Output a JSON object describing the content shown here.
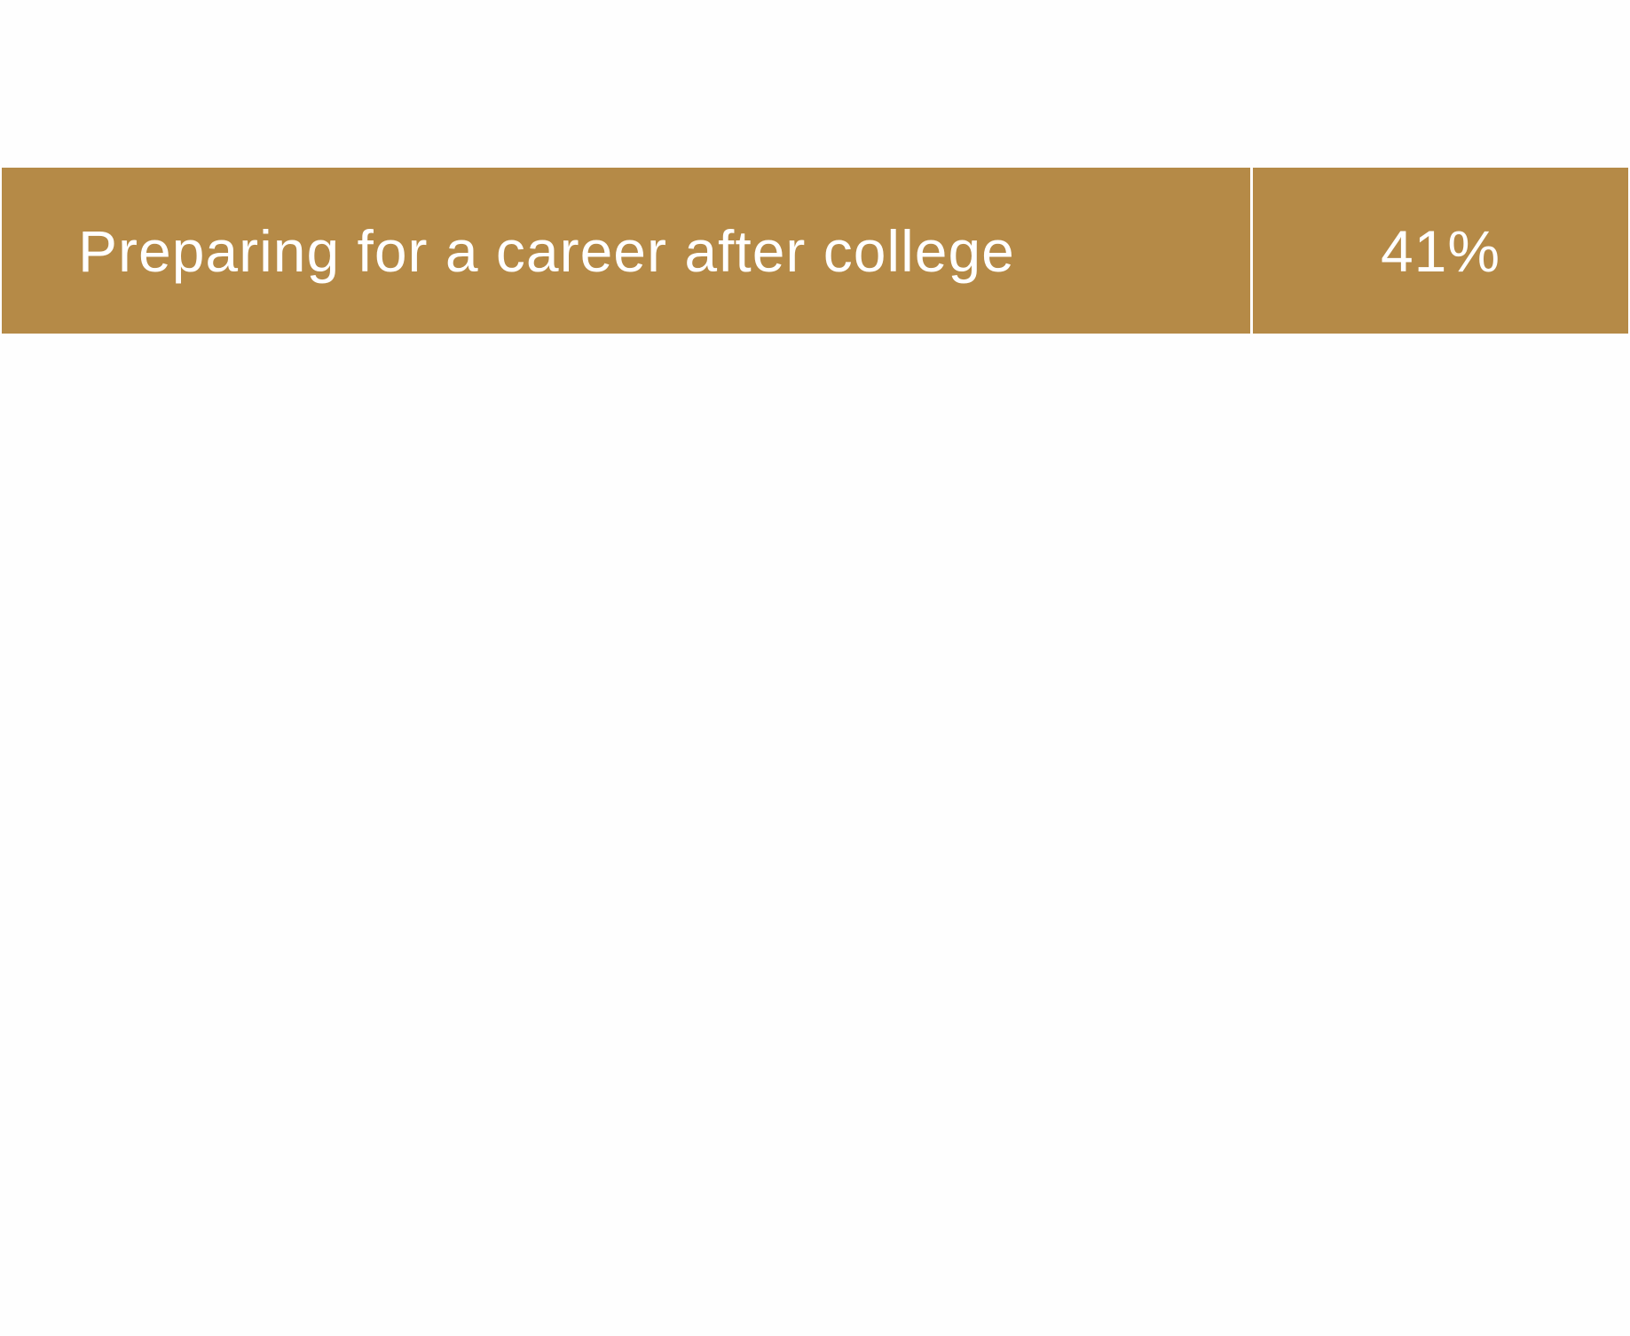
{
  "row": {
    "label": "Preparing for a career after college",
    "value": "41%"
  },
  "colors": {
    "cell_background": "#B58A47",
    "text": "#FFFFFF",
    "page_background": "#FEFEFE"
  }
}
